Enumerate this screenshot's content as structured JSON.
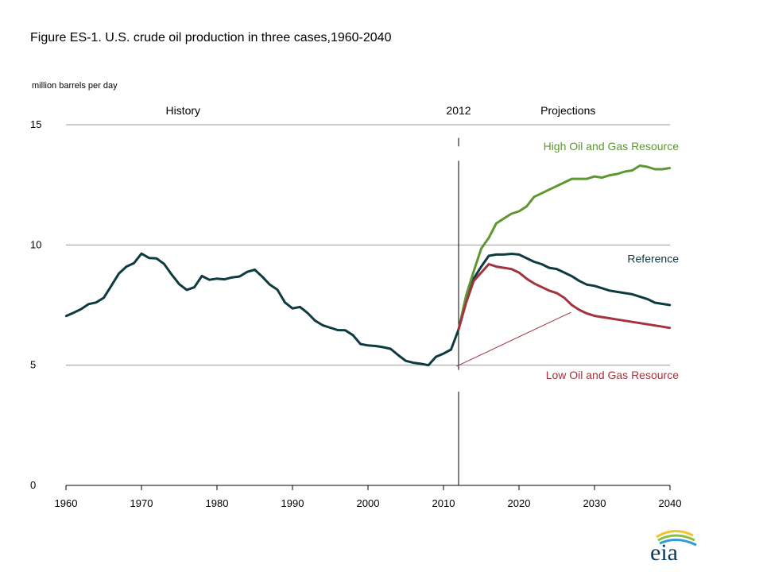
{
  "title": "Figure ES-1. U.S. crude oil production in three cases,1960-2040",
  "unit_label": "million barrels  per day",
  "logo_text": "eia",
  "chart_data": {
    "type": "line",
    "ylim": [
      0,
      15
    ],
    "xlim": [
      1960,
      2040
    ],
    "y_ticks": [
      "0",
      "5",
      "10",
      "15"
    ],
    "x_ticks": [
      "1960",
      "1970",
      "1980",
      "1990",
      "2000",
      "2010",
      "2020",
      "2030",
      "2040"
    ],
    "grid": "horizontal",
    "headers": {
      "history": "History",
      "divider_year": "2012",
      "projections": "Projections"
    },
    "divider_x": 2012,
    "colors": {
      "history": "#0d3b40",
      "reference": "#0d3b40",
      "high": "#5d9732",
      "low": "#a33340",
      "grid": "#9a9a9a"
    },
    "series": [
      {
        "key": "history",
        "x": [
          1960,
          1961,
          1962,
          1963,
          1964,
          1965,
          1966,
          1967,
          1968,
          1969,
          1970,
          1971,
          1972,
          1973,
          1974,
          1975,
          1976,
          1977,
          1978,
          1979,
          1980,
          1981,
          1982,
          1983,
          1984,
          1985,
          1986,
          1987,
          1988,
          1989,
          1990,
          1991,
          1992,
          1993,
          1994,
          1995,
          1996,
          1997,
          1998,
          1999,
          2000,
          2001,
          2002,
          2003,
          2004,
          2005,
          2006,
          2007,
          2008,
          2009,
          2010,
          2011,
          2012
        ],
        "y": [
          7.04,
          7.18,
          7.33,
          7.54,
          7.61,
          7.8,
          8.3,
          8.81,
          9.1,
          9.24,
          9.64,
          9.46,
          9.44,
          9.21,
          8.77,
          8.37,
          8.13,
          8.24,
          8.71,
          8.55,
          8.6,
          8.57,
          8.65,
          8.69,
          8.88,
          8.97,
          8.68,
          8.35,
          8.14,
          7.61,
          7.36,
          7.42,
          7.17,
          6.85,
          6.66,
          6.56,
          6.46,
          6.45,
          6.25,
          5.88,
          5.82,
          5.8,
          5.75,
          5.68,
          5.42,
          5.18,
          5.1,
          5.06,
          5.0,
          5.35,
          5.48,
          5.65,
          6.49
        ]
      },
      {
        "name": "Reference",
        "key": "reference",
        "x": [
          2012,
          2013,
          2014,
          2015,
          2016,
          2017,
          2018,
          2019,
          2020,
          2021,
          2022,
          2023,
          2024,
          2025,
          2026,
          2027,
          2028,
          2029,
          2030,
          2031,
          2032,
          2033,
          2034,
          2035,
          2036,
          2037,
          2038,
          2039,
          2040
        ],
        "y": [
          6.49,
          7.7,
          8.6,
          9.1,
          9.55,
          9.6,
          9.6,
          9.63,
          9.6,
          9.45,
          9.3,
          9.2,
          9.05,
          9.0,
          8.85,
          8.7,
          8.5,
          8.35,
          8.3,
          8.2,
          8.1,
          8.05,
          8.0,
          7.95,
          7.85,
          7.75,
          7.6,
          7.55,
          7.5
        ]
      },
      {
        "name": "High Oil and Gas Resource",
        "key": "high",
        "x": [
          2012,
          2013,
          2014,
          2015,
          2016,
          2017,
          2018,
          2019,
          2020,
          2021,
          2022,
          2023,
          2024,
          2025,
          2026,
          2027,
          2028,
          2029,
          2030,
          2031,
          2032,
          2033,
          2034,
          2035,
          2036,
          2037,
          2038,
          2039,
          2040
        ],
        "y": [
          6.49,
          7.9,
          8.9,
          9.85,
          10.3,
          10.9,
          11.1,
          11.3,
          11.4,
          11.6,
          12.0,
          12.15,
          12.3,
          12.45,
          12.6,
          12.75,
          12.75,
          12.75,
          12.85,
          12.8,
          12.9,
          12.95,
          13.05,
          13.1,
          13.3,
          13.25,
          13.15,
          13.15,
          13.2
        ]
      },
      {
        "name": "Low Oil and Gas Resource",
        "key": "low",
        "x": [
          2012,
          2013,
          2014,
          2015,
          2016,
          2017,
          2018,
          2019,
          2020,
          2021,
          2022,
          2023,
          2024,
          2025,
          2026,
          2027,
          2028,
          2029,
          2030,
          2031,
          2032,
          2033,
          2034,
          2035,
          2036,
          2037,
          2038,
          2039,
          2040
        ],
        "y": [
          6.49,
          7.6,
          8.5,
          8.85,
          9.2,
          9.1,
          9.05,
          9.0,
          8.85,
          8.6,
          8.4,
          8.25,
          8.1,
          8.0,
          7.8,
          7.5,
          7.3,
          7.15,
          7.05,
          7.0,
          6.95,
          6.9,
          6.85,
          6.8,
          6.75,
          6.7,
          6.65,
          6.6,
          6.55
        ]
      }
    ]
  }
}
